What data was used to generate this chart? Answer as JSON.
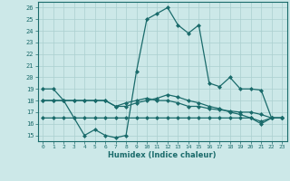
{
  "xlabel": "Humidex (Indice chaleur)",
  "x": [
    0,
    1,
    2,
    3,
    4,
    5,
    6,
    7,
    8,
    9,
    10,
    11,
    12,
    13,
    14,
    15,
    16,
    17,
    18,
    19,
    20,
    21,
    22,
    23
  ],
  "line1": [
    19,
    19,
    18,
    16.5,
    15,
    15.5,
    15,
    14.8,
    15,
    20.5,
    25,
    25.5,
    26,
    24.5,
    23.8,
    24.5,
    19.5,
    19.2,
    20,
    19,
    19,
    18.9,
    16.5,
    16.5
  ],
  "line2": [
    18,
    18,
    18,
    18,
    18,
    18,
    18,
    17.5,
    17.8,
    18,
    18.2,
    18,
    18,
    17.8,
    17.5,
    17.5,
    17.3,
    17.2,
    17.1,
    17,
    17,
    16.8,
    16.5,
    16.5
  ],
  "line3": [
    18,
    18,
    18,
    18,
    18,
    18,
    18,
    17.5,
    17.5,
    17.8,
    18,
    18.2,
    18.5,
    18.3,
    18,
    17.8,
    17.5,
    17.3,
    17,
    16.8,
    16.5,
    16.2,
    16.5,
    16.5
  ],
  "line4": [
    16.5,
    16.5,
    16.5,
    16.5,
    16.5,
    16.5,
    16.5,
    16.5,
    16.5,
    16.5,
    16.5,
    16.5,
    16.5,
    16.5,
    16.5,
    16.5,
    16.5,
    16.5,
    16.5,
    16.5,
    16.5,
    16,
    16.5,
    16.5
  ],
  "color": "#1a6b6b",
  "bg_color": "#cce8e8",
  "grid_color": "#aacfcf",
  "ylim": [
    14.5,
    26.5
  ],
  "yticks": [
    15,
    16,
    17,
    18,
    19,
    20,
    21,
    22,
    23,
    24,
    25,
    26
  ],
  "xticks": [
    0,
    1,
    2,
    3,
    4,
    5,
    6,
    7,
    8,
    9,
    10,
    11,
    12,
    13,
    14,
    15,
    16,
    17,
    18,
    19,
    20,
    21,
    22,
    23
  ]
}
